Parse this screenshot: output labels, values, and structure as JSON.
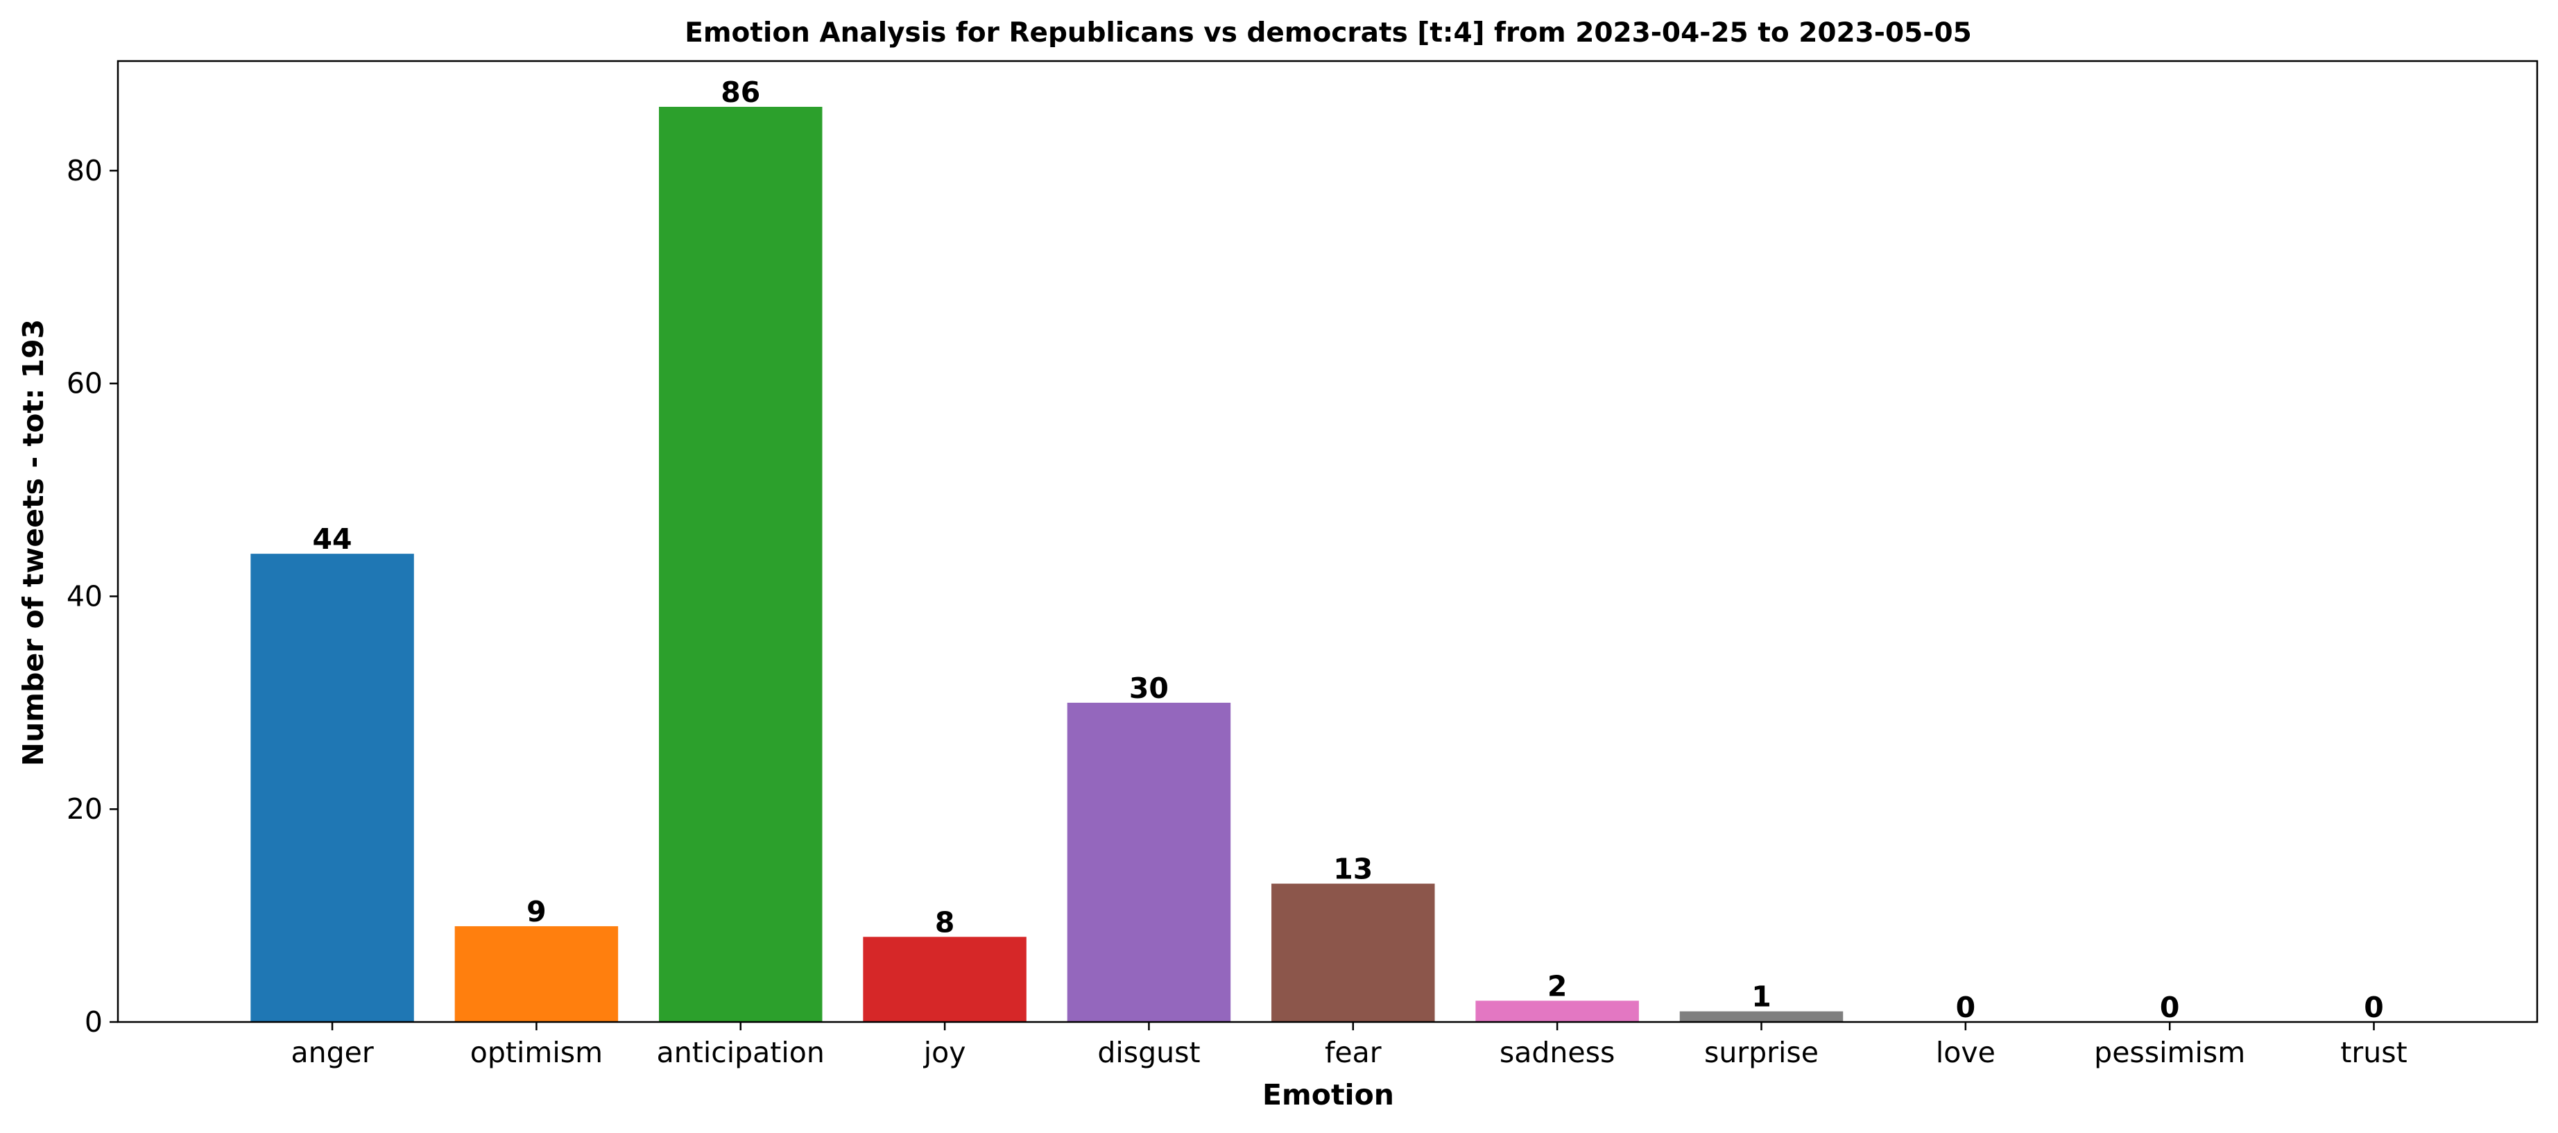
{
  "chart_data": {
    "type": "bar",
    "title": "Emotion Analysis for Republicans vs democrats [t:4] from 2023-04-25 to 2023-05-05",
    "xlabel": "Emotion",
    "ylabel": "Number of tweets - tot: 193",
    "categories": [
      "anger",
      "optimism",
      "anticipation",
      "joy",
      "disgust",
      "fear",
      "sadness",
      "surprise",
      "love",
      "pessimism",
      "trust"
    ],
    "values": [
      44,
      9,
      86,
      8,
      30,
      13,
      2,
      1,
      0,
      0,
      0
    ],
    "value_labels": [
      "44",
      "9",
      "86",
      "8",
      "30",
      "13",
      "2",
      "1",
      "0",
      "0",
      "0"
    ],
    "colors": [
      "#1f77b4",
      "#ff7f0e",
      "#2ca02c",
      "#d62728",
      "#9467bd",
      "#8c564b",
      "#e377c2",
      "#7f7f7f",
      "#bcbd22",
      "#17becf",
      "#1f77b4"
    ],
    "yticks": [
      0,
      20,
      40,
      60,
      80
    ],
    "ytick_labels": [
      "0",
      "20",
      "40",
      "60",
      "80"
    ],
    "ylim": [
      0,
      90.3
    ],
    "xlim": [
      -1.05,
      10.8
    ],
    "grid": false,
    "legend": "none"
  }
}
